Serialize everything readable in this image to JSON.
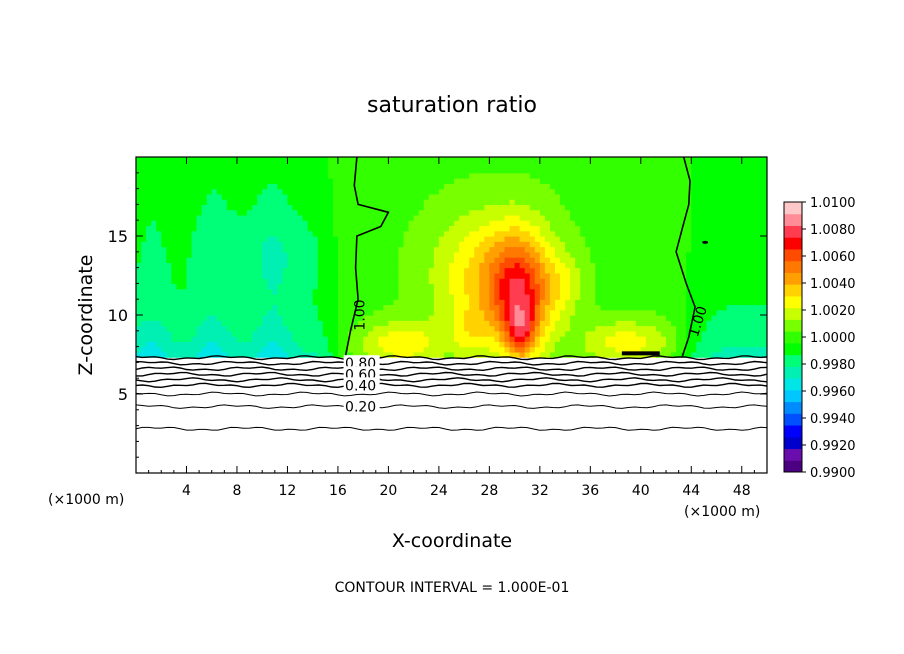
{
  "chart_data": {
    "type": "heatmap",
    "title": "saturation ratio",
    "xlabel": "X-coordinate",
    "ylabel": "Z-coordinate",
    "x_unit_left": "(×1000 m)",
    "x_unit_right": "(×1000 m)",
    "footer": "CONTOUR INTERVAL = 1.000E-01",
    "xlim": [
      0,
      50
    ],
    "ylim": [
      0,
      20
    ],
    "x_ticks": [
      4,
      8,
      12,
      16,
      20,
      24,
      28,
      32,
      36,
      40,
      44,
      48
    ],
    "x_tick_labels": [
      "4",
      "8",
      "12",
      "16",
      "20",
      "24",
      "28",
      "32",
      "36",
      "40",
      "44",
      "48"
    ],
    "y_ticks": [
      5,
      10,
      15
    ],
    "y_tick_labels": [
      "5",
      "10",
      "15"
    ],
    "colorbar": {
      "min": 0.99,
      "max": 1.01,
      "labels": [
        "1.0100",
        "1.0080",
        "1.0060",
        "1.0040",
        "1.0020",
        "1.0000",
        "0.9980",
        "0.9960",
        "0.9940",
        "0.9920",
        "0.9900"
      ],
      "colors": [
        "#4b0082",
        "#6a0dad",
        "#0000cd",
        "#0000ff",
        "#0050ff",
        "#008cff",
        "#00c8ff",
        "#00e6e6",
        "#00f0b4",
        "#00ff78",
        "#00ff00",
        "#32ff00",
        "#78ff00",
        "#c8ff00",
        "#ffff00",
        "#ffd200",
        "#ffa000",
        "#ff7800",
        "#ff4b00",
        "#ff0000",
        "#ff3c50",
        "#ff8c96",
        "#ffc8c8"
      ]
    },
    "contour_labels": [
      {
        "text": "1.00",
        "x": 17.7,
        "z": 10.0,
        "rotate": -90
      },
      {
        "text": "1.00",
        "x": 44.5,
        "z": 9.6,
        "rotate": -72
      },
      {
        "text": "0.80",
        "x": 17.8,
        "z": 6.95
      },
      {
        "text": "0.60",
        "x": 17.8,
        "z": 6.25
      },
      {
        "text": "0.40",
        "x": 17.8,
        "z": 5.55
      },
      {
        "text": "0.20",
        "x": 17.8,
        "z": 4.2
      }
    ],
    "contour_lines_z": [
      2.8,
      4.2,
      5.0,
      5.55,
      5.9,
      6.25,
      6.6,
      6.95,
      7.3
    ]
  }
}
